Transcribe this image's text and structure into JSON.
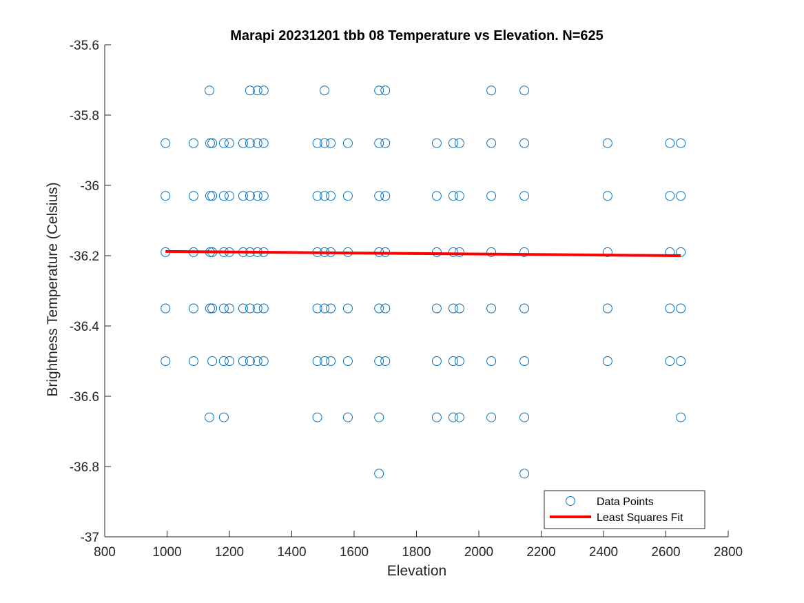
{
  "chart_data": {
    "type": "scatter",
    "title": "Marapi 20231201 tbb 08 Temperature vs Elevation. N=625",
    "xlabel": "Elevation",
    "ylabel": "Brightness Temperature (Celsius)",
    "xlim": [
      800,
      2800
    ],
    "ylim": [
      -37,
      -35.6
    ],
    "xticks": [
      800,
      1000,
      1200,
      1400,
      1600,
      1800,
      2000,
      2200,
      2400,
      2600,
      2800
    ],
    "xtick_labels": [
      "800",
      "1000",
      "1200",
      "1400",
      "1600",
      "1800",
      "2000",
      "2200",
      "2400",
      "2600",
      "2800"
    ],
    "yticks": [
      -37,
      -36.8,
      -36.6,
      -36.4,
      -36.2,
      -36,
      -35.8,
      -35.6
    ],
    "ytick_labels": [
      "-37",
      "-36.8",
      "-36.6",
      "-36.4",
      "-36.2",
      "-36",
      "-35.8",
      "-35.6"
    ],
    "grid": false,
    "legend_location": "bottom-right",
    "series": [
      {
        "name": "Data Points",
        "kind": "scatter",
        "marker": "open-circle",
        "color": "#0072BD",
        "points": [
          [
            1136,
            -35.73
          ],
          [
            1266,
            -35.73
          ],
          [
            1290,
            -35.73
          ],
          [
            1310,
            -35.73
          ],
          [
            1505,
            -35.73
          ],
          [
            1680,
            -35.73
          ],
          [
            1700,
            -35.73
          ],
          [
            2040,
            -35.73
          ],
          [
            2146,
            -35.73
          ],
          [
            995,
            -35.88
          ],
          [
            1085,
            -35.88
          ],
          [
            1138,
            -35.88
          ],
          [
            1145,
            -35.88
          ],
          [
            1182,
            -35.88
          ],
          [
            1200,
            -35.88
          ],
          [
            1244,
            -35.88
          ],
          [
            1266,
            -35.88
          ],
          [
            1290,
            -35.88
          ],
          [
            1310,
            -35.88
          ],
          [
            1482,
            -35.88
          ],
          [
            1505,
            -35.88
          ],
          [
            1525,
            -35.88
          ],
          [
            1580,
            -35.88
          ],
          [
            1680,
            -35.88
          ],
          [
            1700,
            -35.88
          ],
          [
            1865,
            -35.88
          ],
          [
            1918,
            -35.88
          ],
          [
            1938,
            -35.88
          ],
          [
            2040,
            -35.88
          ],
          [
            2146,
            -35.88
          ],
          [
            2413,
            -35.88
          ],
          [
            2613,
            -35.88
          ],
          [
            2648,
            -35.88
          ],
          [
            995,
            -36.03
          ],
          [
            1085,
            -36.03
          ],
          [
            1138,
            -36.03
          ],
          [
            1145,
            -36.03
          ],
          [
            1182,
            -36.03
          ],
          [
            1200,
            -36.03
          ],
          [
            1244,
            -36.03
          ],
          [
            1266,
            -36.03
          ],
          [
            1290,
            -36.03
          ],
          [
            1310,
            -36.03
          ],
          [
            1482,
            -36.03
          ],
          [
            1505,
            -36.03
          ],
          [
            1525,
            -36.03
          ],
          [
            1580,
            -36.03
          ],
          [
            1680,
            -36.03
          ],
          [
            1700,
            -36.03
          ],
          [
            1865,
            -36.03
          ],
          [
            1918,
            -36.03
          ],
          [
            1938,
            -36.03
          ],
          [
            2040,
            -36.03
          ],
          [
            2146,
            -36.03
          ],
          [
            2413,
            -36.03
          ],
          [
            2613,
            -36.03
          ],
          [
            2648,
            -36.03
          ],
          [
            995,
            -36.19
          ],
          [
            1085,
            -36.19
          ],
          [
            1138,
            -36.19
          ],
          [
            1145,
            -36.19
          ],
          [
            1182,
            -36.19
          ],
          [
            1200,
            -36.19
          ],
          [
            1244,
            -36.19
          ],
          [
            1266,
            -36.19
          ],
          [
            1290,
            -36.19
          ],
          [
            1310,
            -36.19
          ],
          [
            1482,
            -36.19
          ],
          [
            1505,
            -36.19
          ],
          [
            1525,
            -36.19
          ],
          [
            1580,
            -36.19
          ],
          [
            1680,
            -36.19
          ],
          [
            1700,
            -36.19
          ],
          [
            1865,
            -36.19
          ],
          [
            1918,
            -36.19
          ],
          [
            1938,
            -36.19
          ],
          [
            2040,
            -36.19
          ],
          [
            2146,
            -36.19
          ],
          [
            2413,
            -36.19
          ],
          [
            2613,
            -36.19
          ],
          [
            2648,
            -36.19
          ],
          [
            995,
            -36.35
          ],
          [
            1085,
            -36.35
          ],
          [
            1138,
            -36.35
          ],
          [
            1145,
            -36.35
          ],
          [
            1182,
            -36.35
          ],
          [
            1200,
            -36.35
          ],
          [
            1244,
            -36.35
          ],
          [
            1266,
            -36.35
          ],
          [
            1290,
            -36.35
          ],
          [
            1310,
            -36.35
          ],
          [
            1482,
            -36.35
          ],
          [
            1505,
            -36.35
          ],
          [
            1525,
            -36.35
          ],
          [
            1580,
            -36.35
          ],
          [
            1680,
            -36.35
          ],
          [
            1700,
            -36.35
          ],
          [
            1865,
            -36.35
          ],
          [
            1918,
            -36.35
          ],
          [
            1938,
            -36.35
          ],
          [
            2040,
            -36.35
          ],
          [
            2146,
            -36.35
          ],
          [
            2413,
            -36.35
          ],
          [
            2613,
            -36.35
          ],
          [
            2648,
            -36.35
          ],
          [
            995,
            -36.5
          ],
          [
            1085,
            -36.5
          ],
          [
            1145,
            -36.5
          ],
          [
            1182,
            -36.5
          ],
          [
            1200,
            -36.5
          ],
          [
            1244,
            -36.5
          ],
          [
            1266,
            -36.5
          ],
          [
            1290,
            -36.5
          ],
          [
            1310,
            -36.5
          ],
          [
            1482,
            -36.5
          ],
          [
            1505,
            -36.5
          ],
          [
            1525,
            -36.5
          ],
          [
            1580,
            -36.5
          ],
          [
            1680,
            -36.5
          ],
          [
            1700,
            -36.5
          ],
          [
            1865,
            -36.5
          ],
          [
            1918,
            -36.5
          ],
          [
            1938,
            -36.5
          ],
          [
            2040,
            -36.5
          ],
          [
            2146,
            -36.5
          ],
          [
            2413,
            -36.5
          ],
          [
            2613,
            -36.5
          ],
          [
            2648,
            -36.5
          ],
          [
            1136,
            -36.66
          ],
          [
            1182,
            -36.66
          ],
          [
            1482,
            -36.66
          ],
          [
            1580,
            -36.66
          ],
          [
            1680,
            -36.66
          ],
          [
            1865,
            -36.66
          ],
          [
            1918,
            -36.66
          ],
          [
            1938,
            -36.66
          ],
          [
            2040,
            -36.66
          ],
          [
            2146,
            -36.66
          ],
          [
            2648,
            -36.66
          ],
          [
            1680,
            -36.82
          ],
          [
            2146,
            -36.82
          ]
        ]
      },
      {
        "name": "Least Squares Fit",
        "kind": "line",
        "color": "#FF0000",
        "points": [
          [
            995,
            -36.188
          ],
          [
            2648,
            -36.2
          ]
        ]
      }
    ]
  }
}
